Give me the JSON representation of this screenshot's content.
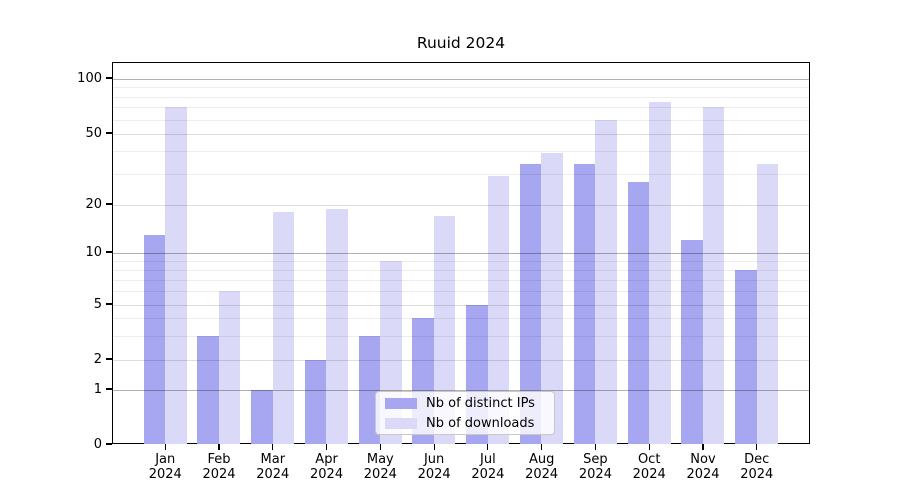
{
  "title": "Ruuid 2024",
  "chart_data": {
    "type": "bar",
    "title": "Ruuid 2024",
    "year": "2024",
    "months": [
      "Jan",
      "Feb",
      "Mar",
      "Apr",
      "May",
      "Jun",
      "Jul",
      "Aug",
      "Sep",
      "Oct",
      "Nov",
      "Dec"
    ],
    "categories": [
      "Jan 2024",
      "Feb 2024",
      "Mar 2024",
      "Apr 2024",
      "May 2024",
      "Jun 2024",
      "Jul 2024",
      "Aug 2024",
      "Sep 2024",
      "Oct 2024",
      "Nov 2024",
      "Dec 2024"
    ],
    "series": [
      {
        "name": "Nb of distinct IPs",
        "color": "#a6a6f1",
        "values": [
          13,
          3,
          1,
          2,
          3,
          4,
          5,
          34,
          34,
          27,
          12,
          8
        ]
      },
      {
        "name": "Nb of downloads",
        "color": "#dadaf8",
        "values": [
          70,
          6,
          18,
          19,
          9,
          17,
          29,
          39,
          60,
          75,
          70,
          34
        ]
      }
    ],
    "xlabel": "",
    "ylabel": "",
    "y_axis": {
      "scale": "log-like above 1 with compressed 0-1 region (symlog/asinh style)",
      "ticks": [
        100,
        50,
        20,
        10,
        5,
        2,
        1,
        0
      ],
      "range_top": 122
    },
    "gridlines": {
      "major": [
        1,
        10,
        100
      ],
      "mid": [
        2,
        5,
        20,
        50
      ],
      "minor": [
        3,
        4,
        6,
        7,
        8,
        9,
        30,
        40,
        60,
        70,
        80,
        90
      ]
    },
    "legend_position": "lower center",
    "grid": true
  }
}
